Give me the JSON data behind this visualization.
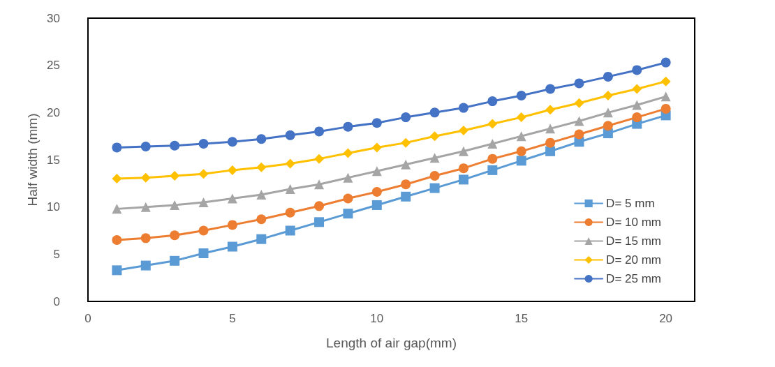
{
  "chart_data": {
    "type": "line",
    "xlabel": "Length of air gap(mm)",
    "ylabel": "Half width (mm)",
    "x": [
      1,
      2,
      3,
      4,
      5,
      6,
      7,
      8,
      9,
      10,
      11,
      12,
      13,
      14,
      15,
      16,
      17,
      18,
      19,
      20
    ],
    "xlim": [
      0,
      21
    ],
    "xticks": [
      0,
      5,
      10,
      15,
      20
    ],
    "ylim": [
      0,
      30
    ],
    "yticks": [
      0,
      5,
      10,
      15,
      20,
      25,
      30
    ],
    "grid": false,
    "legend": "bottom right",
    "line_style": "solid",
    "series": [
      {
        "name": "D= 5 mm",
        "color": "#5b9bd5",
        "marker": "square",
        "values": [
          3.3,
          3.8,
          4.3,
          5.1,
          5.8,
          6.6,
          7.5,
          8.4,
          9.3,
          10.2,
          11.1,
          12.0,
          12.9,
          13.9,
          14.9,
          15.9,
          16.9,
          17.8,
          18.8,
          19.7
        ]
      },
      {
        "name": "D= 10 mm",
        "color": "#ed7d31",
        "marker": "circle",
        "values": [
          6.5,
          6.7,
          7.0,
          7.5,
          8.1,
          8.7,
          9.4,
          10.1,
          10.9,
          11.6,
          12.4,
          13.3,
          14.1,
          15.1,
          15.9,
          16.8,
          17.7,
          18.6,
          19.5,
          20.4
        ]
      },
      {
        "name": "D= 15 mm",
        "color": "#a5a5a5",
        "marker": "triangle",
        "values": [
          9.8,
          10.0,
          10.2,
          10.5,
          10.9,
          11.3,
          11.9,
          12.4,
          13.1,
          13.8,
          14.5,
          15.2,
          15.9,
          16.7,
          17.5,
          18.3,
          19.1,
          20.0,
          20.8,
          21.7
        ]
      },
      {
        "name": "D= 20 mm",
        "color": "#ffc000",
        "marker": "diamond",
        "values": [
          13.0,
          13.1,
          13.3,
          13.5,
          13.9,
          14.2,
          14.6,
          15.1,
          15.7,
          16.3,
          16.8,
          17.5,
          18.1,
          18.8,
          19.5,
          20.3,
          21.0,
          21.8,
          22.5,
          23.3
        ]
      },
      {
        "name": "D= 25 mm",
        "color": "#4472c4",
        "marker": "circle",
        "values": [
          16.3,
          16.4,
          16.5,
          16.7,
          16.9,
          17.2,
          17.6,
          18.0,
          18.5,
          18.9,
          19.5,
          20.0,
          20.5,
          21.2,
          21.8,
          22.5,
          23.1,
          23.8,
          24.5,
          25.3
        ]
      }
    ]
  }
}
